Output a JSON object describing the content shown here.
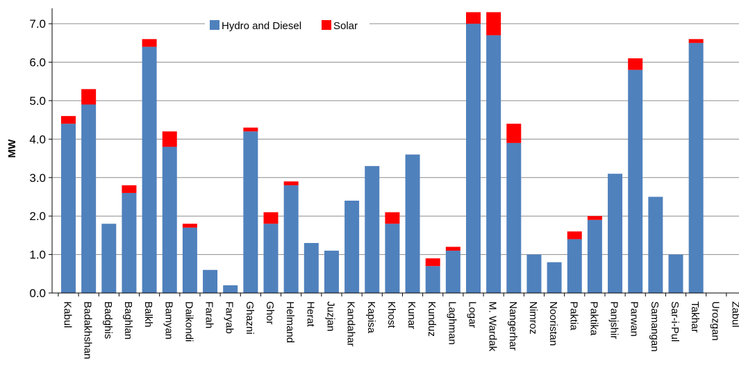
{
  "chart_data": {
    "type": "bar",
    "stacked": true,
    "title": "",
    "xlabel": "",
    "ylabel": "MW",
    "ylim": [
      0,
      7.4
    ],
    "yticks": [
      "0.0",
      "1.0",
      "2.0",
      "3.0",
      "4.0",
      "5.0",
      "6.0",
      "7.0"
    ],
    "grid": true,
    "legend_position": "top-center",
    "categories": [
      "Kabul",
      "Badakhshan",
      "Badghis",
      "Baghlan",
      "Balkh",
      "Bamyan",
      "Daikondi",
      "Farah",
      "Faryab",
      "Ghazni",
      "Ghor",
      "Helmand",
      "Herat",
      "Juzjan",
      "Kandahar",
      "Kapisa",
      "Khost",
      "Kunar",
      "Kunduz",
      "Laghman",
      "Logar",
      "M. Wardak",
      "Nangerhar",
      "Nimroz",
      "Nooristan",
      "Paktia",
      "Paktika",
      "Panjshir",
      "Parwan",
      "Samangan",
      "Sar-i-Pul",
      "Takhar",
      "Urozgan",
      "Zabul"
    ],
    "series": [
      {
        "name": "Hydro and Diesel",
        "color": "#4f81bd",
        "values": [
          4.4,
          4.9,
          1.8,
          2.6,
          6.4,
          3.8,
          1.7,
          0.6,
          0.2,
          4.2,
          1.8,
          2.8,
          1.3,
          1.1,
          2.4,
          3.3,
          1.8,
          3.6,
          0.7,
          1.1,
          7.0,
          6.7,
          3.9,
          1.0,
          0.8,
          1.4,
          1.9,
          3.1,
          5.8,
          2.5,
          1.0,
          6.5,
          0.0,
          0.0
        ]
      },
      {
        "name": "Solar",
        "color": "#ff0000",
        "values": [
          0.2,
          0.4,
          0.0,
          0.2,
          0.2,
          0.4,
          0.1,
          0.0,
          0.0,
          0.1,
          0.3,
          0.1,
          0.0,
          0.0,
          0.0,
          0.0,
          0.3,
          0.0,
          0.2,
          0.1,
          0.3,
          0.6,
          0.5,
          0.0,
          0.0,
          0.2,
          0.1,
          0.0,
          0.3,
          0.0,
          0.0,
          0.1,
          0.0,
          0.0
        ]
      }
    ]
  }
}
